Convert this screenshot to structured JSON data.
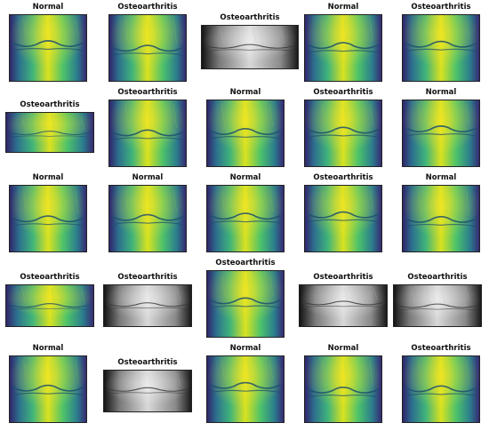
{
  "grid": {
    "tiles": [
      {
        "label": "Normal",
        "style": "viridis"
      },
      {
        "label": "Osteoarthritis",
        "style": "viridis"
      },
      {
        "label": "Osteoarthritis",
        "style": "gray"
      },
      {
        "label": "Normal",
        "style": "viridis"
      },
      {
        "label": "Osteoarthritis",
        "style": "viridis"
      },
      {
        "label": "Osteoarthritis",
        "style": "viridis"
      },
      {
        "label": "Osteoarthritis",
        "style": "viridis"
      },
      {
        "label": "Normal",
        "style": "viridis"
      },
      {
        "label": "Osteoarthritis",
        "style": "viridis"
      },
      {
        "label": "Normal",
        "style": "viridis"
      },
      {
        "label": "Normal",
        "style": "viridis"
      },
      {
        "label": "Normal",
        "style": "viridis"
      },
      {
        "label": "Normal",
        "style": "viridis"
      },
      {
        "label": "Osteoarthritis",
        "style": "viridis"
      },
      {
        "label": "Normal",
        "style": "viridis"
      },
      {
        "label": "Osteoarthritis",
        "style": "viridis"
      },
      {
        "label": "Osteoarthritis",
        "style": "gray"
      },
      {
        "label": "Osteoarthritis",
        "style": "viridis"
      },
      {
        "label": "Osteoarthritis",
        "style": "gray"
      },
      {
        "label": "Osteoarthritis",
        "style": "gray"
      },
      {
        "label": "Normal",
        "style": "viridis"
      },
      {
        "label": "Osteoarthritis",
        "style": "gray"
      },
      {
        "label": "Normal",
        "style": "viridis"
      },
      {
        "label": "Normal",
        "style": "viridis"
      },
      {
        "label": "Osteoarthritis",
        "style": "viridis"
      }
    ]
  }
}
